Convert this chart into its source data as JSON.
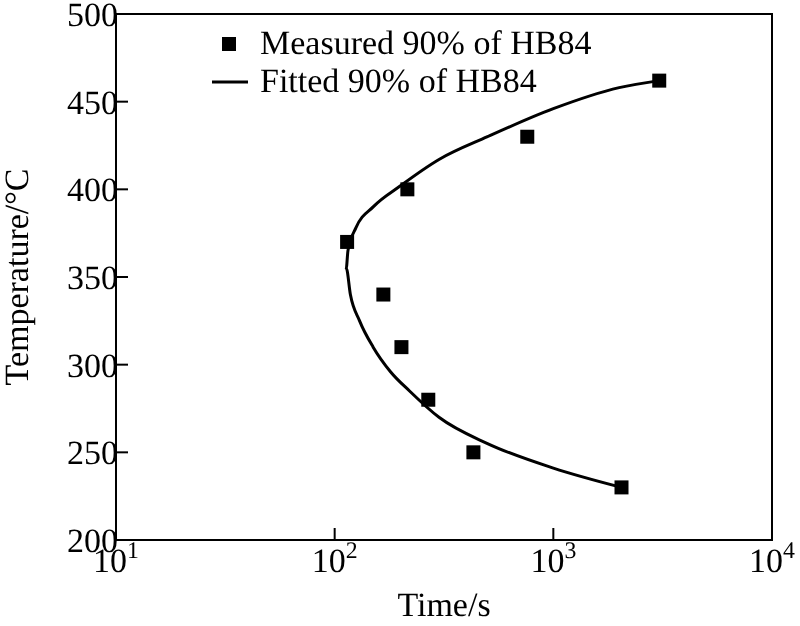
{
  "chart_data": {
    "type": "scatter",
    "xlabel": "Time/s",
    "ylabel": "Temperature/°C",
    "log": "x",
    "xlim": [
      10,
      10000
    ],
    "xticks": [
      {
        "value": 10,
        "label": "10$^{1}$"
      },
      {
        "value": 100,
        "label": "10$^{2}$"
      },
      {
        "value": 1000,
        "label": "10$^{3}$"
      },
      {
        "value": 10000,
        "label": "10$^{4}$"
      }
    ],
    "ylim": [
      200,
      500
    ],
    "yticks": [
      200,
      250,
      300,
      350,
      400,
      450,
      500
    ],
    "grid": false,
    "legend": "top left",
    "series": [
      {
        "name": "Measured 90% of HB84",
        "type": "scatter",
        "marker": "square",
        "color": "#000000",
        "x": [
          3050,
          760,
          215,
          114,
          167,
          202,
          268,
          431,
          2050
        ],
        "values": [
          462,
          430,
          400,
          370,
          340,
          310,
          280,
          250,
          230
        ]
      },
      {
        "name": "Fitted 90% of HB84",
        "type": "line",
        "marker": "none",
        "line_style": "solid",
        "color": "#000000",
        "x": [
          3050,
          2000,
          1000,
          500,
          300,
          200,
          150,
          125,
          115,
          113,
          118,
          130,
          150,
          180,
          220,
          300,
          500,
          1000,
          2050
        ],
        "values": [
          462,
          458,
          446,
          430,
          417,
          402,
          390,
          378,
          365,
          355,
          340,
          325,
          310,
          296,
          285,
          270,
          255,
          241,
          230
        ]
      }
    ]
  }
}
